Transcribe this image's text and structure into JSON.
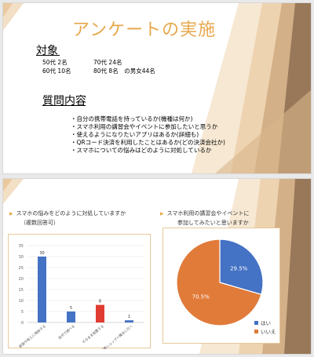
{
  "slide1": {
    "title": "アンケートの実施",
    "subject": {
      "heading": "対象",
      "lines": [
        {
          "left": "50代 2名",
          "right": "70代 24名"
        },
        {
          "left": "60代 10名",
          "right": "80代 8名　の男女44名"
        }
      ]
    },
    "questions": {
      "heading": "質問内容",
      "items": [
        "自分の携帯電話を持っているか(機種は何か)",
        "スマホ利用の講習会やイベントに参加したいと思うか",
        "使えるようになりたいアプリはあるか(詳細も)",
        "QRコード決済を利用したことはあるか(どの決済会社か)",
        "スマホについての悩みはどのように対処しているか"
      ]
    }
  },
  "slide2": {
    "left_title_line1": "スマホの悩みをどのように対処していますか",
    "left_title_line2": "（複数回答可）",
    "right_title_line1": "スマホ利用の講習会やイベントに",
    "right_title_line2": "参加してみたいと思いますか"
  },
  "chart_data": [
    {
      "type": "bar",
      "title": "スマホの悩みをどのように対処していますか（複数回答可）",
      "categories": [
        "家族や知人に相談する",
        "自分で調べる",
        "そのまま放置する",
        "携帯ショップへ聞きに行く"
      ],
      "values": [
        30,
        5,
        8,
        1
      ],
      "ylim": [
        0,
        35
      ],
      "yticks": [
        0,
        5,
        10,
        15,
        20,
        25,
        30,
        35
      ],
      "colors": [
        "#4472c4",
        "#4472c4",
        "#e03c31",
        "#4472c4"
      ],
      "grid": true
    },
    {
      "type": "pie",
      "title": "スマホ利用の講習会やイベントに参加してみたいと思いますか",
      "categories": [
        "はい",
        "いいえ"
      ],
      "values": [
        29.5,
        70.5
      ],
      "labels": [
        "29.5%",
        "70.5%"
      ],
      "colors": [
        "#4472c4",
        "#e07b3a"
      ],
      "legend": "bottom-right"
    }
  ]
}
